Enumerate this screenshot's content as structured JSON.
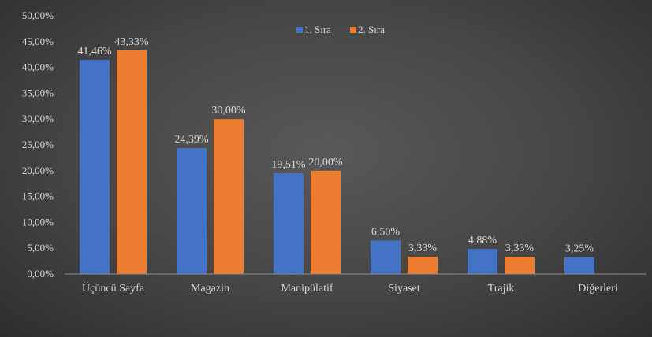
{
  "chart_data": {
    "type": "bar",
    "categories": [
      "Üçüncü Sayfa",
      "Magazin",
      "Manipülatif",
      "Siyaset",
      "Trajik",
      "Diğerleri"
    ],
    "series": [
      {
        "name": "1. Sıra",
        "color": "#4472c4",
        "values": [
          41.46,
          24.39,
          19.51,
          6.5,
          4.88,
          3.25
        ],
        "labels": [
          "41,46%",
          "24,39%",
          "19,51%",
          "6,50%",
          "4,88%",
          "3,25%"
        ]
      },
      {
        "name": "2. Sıra",
        "color": "#ed7d31",
        "values": [
          43.33,
          30.0,
          20.0,
          3.33,
          3.33,
          null
        ],
        "labels": [
          "43,33%",
          "30,00%",
          "20,00%",
          "3,33%",
          "3,33%",
          null
        ]
      }
    ],
    "y_ticks": [
      "0,00%",
      "5,00%",
      "10,00%",
      "15,00%",
      "20,00%",
      "25,00%",
      "30,00%",
      "35,00%",
      "40,00%",
      "45,00%",
      "50,00%"
    ],
    "ylim": [
      0,
      50
    ],
    "title": "",
    "xlabel": "",
    "ylabel": "",
    "legend_position": "top-center",
    "grid": false
  }
}
